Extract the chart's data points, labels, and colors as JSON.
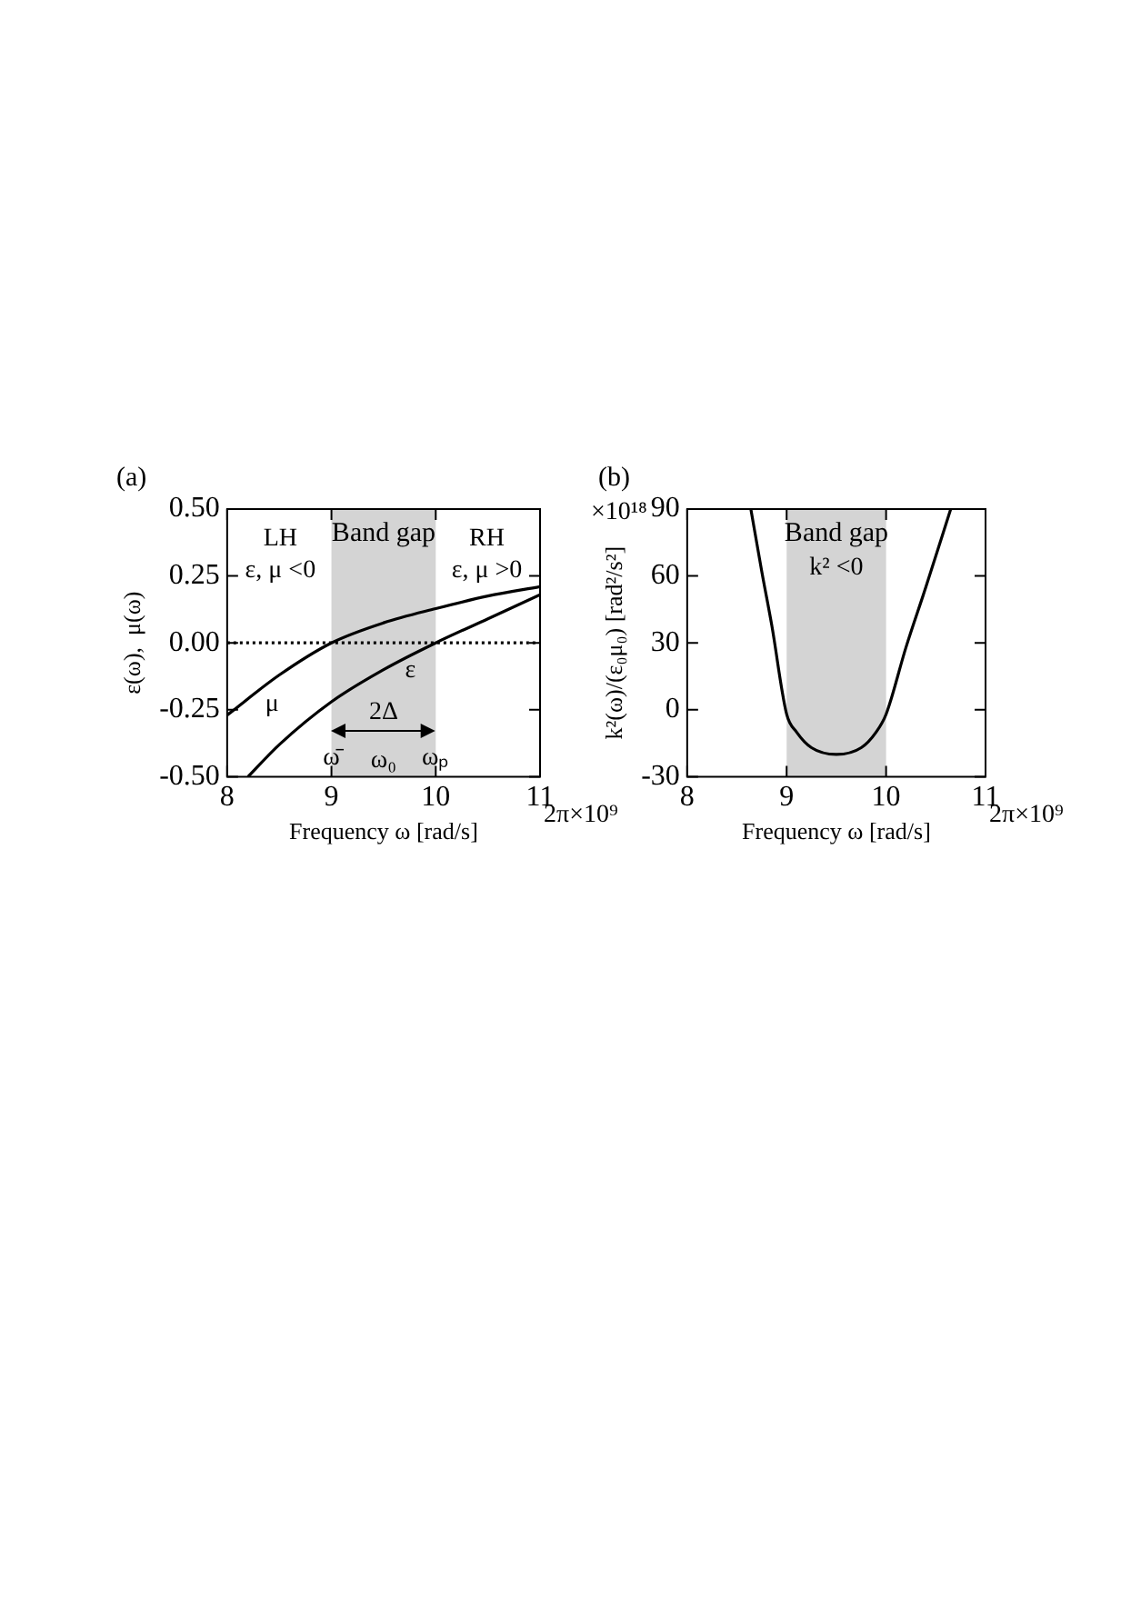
{
  "chart_data": [
    {
      "type": "line",
      "title": "(a)",
      "xlabel": "Frequency ω [rad/s]",
      "ylabel": "ε(ω),  μ(ω)",
      "xlim": [
        8,
        11
      ],
      "xticks": [
        8,
        9,
        10,
        11
      ],
      "ylim": [
        -0.5,
        0.5
      ],
      "yticks": [
        {
          "value": -0.5,
          "label": "-0.50"
        },
        {
          "value": -0.25,
          "label": "-0.25"
        },
        {
          "value": 0,
          "label": "0.00"
        },
        {
          "value": 0.25,
          "label": "0.25"
        },
        {
          "value": 0.5,
          "label": "0.50"
        }
      ],
      "series": [
        {
          "name": "μ",
          "color": "#000000",
          "x": [
            8,
            8.5,
            9,
            9.5,
            10,
            10.5,
            11
          ],
          "values": [
            -0.27,
            -0.12,
            0,
            0.075,
            0.128,
            0.175,
            0.21
          ]
        },
        {
          "name": "ε",
          "color": "#000000",
          "x": [
            8.2,
            8.5,
            9,
            9.5,
            10,
            10.5,
            11
          ],
          "values": [
            -0.5,
            -0.38,
            -0.22,
            -0.1,
            0,
            0.09,
            0.18
          ]
        }
      ],
      "bands": [
        {
          "axis": "x",
          "from": 9,
          "to": 10,
          "label": "Band gap",
          "color": "#d4d4d4"
        }
      ],
      "ref_lines": [
        {
          "axis": "y",
          "value": 0,
          "line_style": "dotted"
        }
      ],
      "annotations": [
        "2π×10⁹",
        "LH",
        "ε, μ <0",
        "RH",
        "ε, μ >0",
        "2Δ",
        "ω̄",
        "ω₀",
        "ωₚ"
      ],
      "legend": false,
      "marker": "none",
      "line_style": "solid"
    },
    {
      "type": "line",
      "title": "(b)",
      "xlabel": "Frequency ω [rad/s]",
      "ylabel": "k²(ω)/(ε₀μ₀) [rad²/s²]",
      "xlim": [
        8,
        11
      ],
      "xticks": [
        8,
        9,
        10,
        11
      ],
      "ylim": [
        -30,
        90
      ],
      "yticks": [
        -30,
        0,
        30,
        60,
        90
      ],
      "series": [
        {
          "color": "#000000",
          "x": [
            8.64,
            8.75,
            8.85,
            9,
            9.1,
            9.25,
            9.5,
            9.75,
            9.9,
            10,
            10.2,
            10.4,
            10.65
          ],
          "values": [
            90,
            62,
            38,
            -2,
            -10,
            -17,
            -20,
            -17,
            -10,
            -2,
            28,
            55,
            90
          ]
        }
      ],
      "bands": [
        {
          "axis": "x",
          "from": 9,
          "to": 10,
          "label": "Band gap",
          "color": "#d4d4d4"
        }
      ],
      "annotations": [
        "2π×10⁹",
        "×10¹⁸",
        "k² <0"
      ],
      "legend": false,
      "marker": "none",
      "line_style": "solid"
    }
  ]
}
